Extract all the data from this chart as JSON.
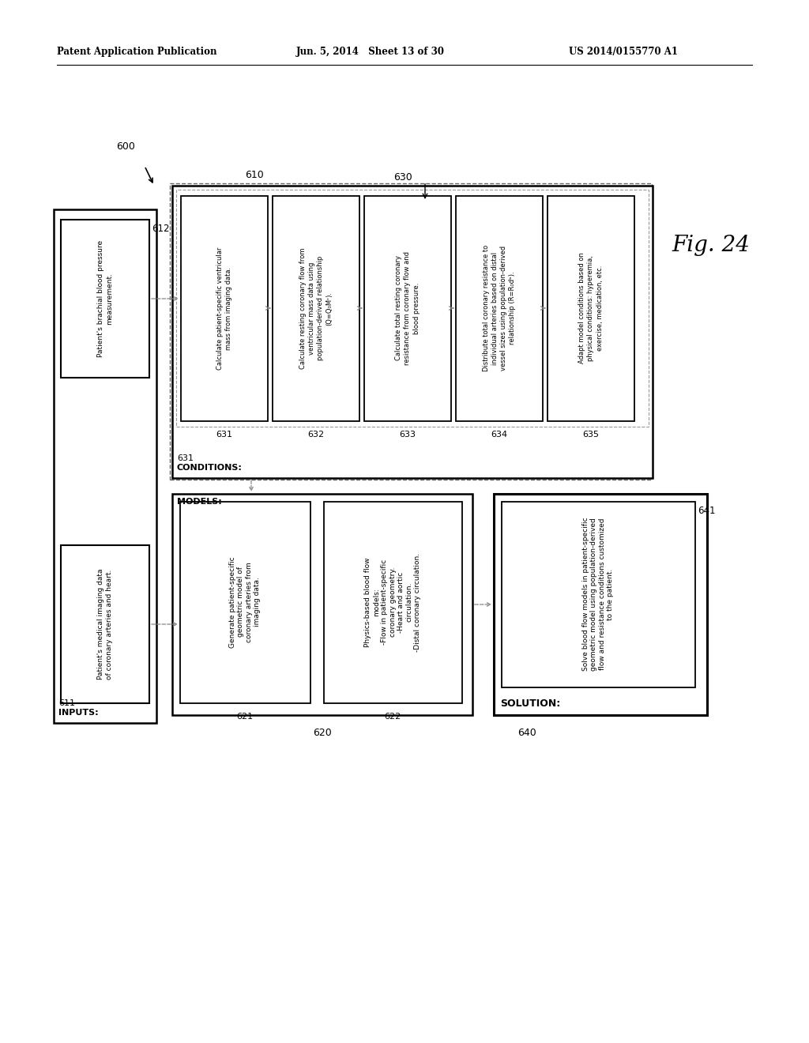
{
  "header_left": "Patent Application Publication",
  "header_mid": "Jun. 5, 2014   Sheet 13 of 30",
  "header_right": "US 2014/0155770 A1",
  "fig_label": "Fig. 24",
  "bg_color": "#ffffff",
  "text_color": "#000000",
  "box612_text": "Patient's brachial blood pressure\nmeasurement.",
  "box_imaging_text": "Patient's medical imaging data\nof coronary arteries and heart.",
  "box621_text": "Generate patient-specific\ngeometric model of\ncoronary arteries from\nimaging data.",
  "box622_text": "Physics-based blood flow\nmodels:\n-Flow in patient-specific\ncoronary geometry.\n-Heart and aortic\ncirculation.\n-Distal coronary circulation.",
  "box631_text": "Calculate patient-specific ventricular\nmass from imaging data.",
  "box632_text": "Calculate resting coronary flow from\nventricular mass data using\npopulation-derived relationship\n(Q=Q₀Mᶜ).",
  "box633_text": "Calculate total resting coronary\nresistance from coronary flow and\nblood pressure.",
  "box634_text": "Distribute total coronary resistance to\nindividual arteries based on distal\nvessel sizes using population-derived\nrelationship (R=R₀dᵇ).",
  "box635_text": "Adapt model conditions based on\nphysical conditions: hyperemia,\nexercise, medication, etc.",
  "box641_text": "Solve blood flow models in patient-specific\ngeometric model using population-derived\nflow and resistance conditions customized\nto the patient."
}
